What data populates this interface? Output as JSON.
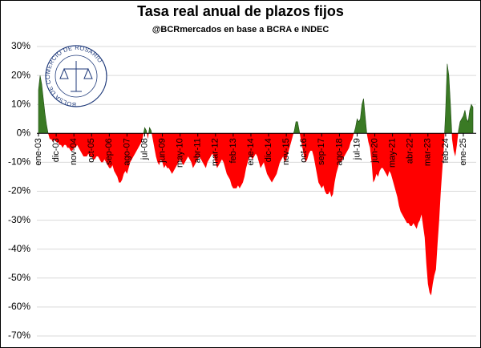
{
  "chart_data": {
    "type": "area",
    "title": "Tasa real anual de plazos fijos",
    "subtitle": "@BCRmercados en base a BCRA e INDEC",
    "logo_text": "BOLSA DE COMERCIO DE ROSARIO",
    "positive_color": "#3a7a24",
    "negative_color": "#ff0000",
    "grid": true,
    "ylim": [
      -70,
      30
    ],
    "yticks": [
      {
        "value": 30,
        "label": "30%"
      },
      {
        "value": 20,
        "label": "20%"
      },
      {
        "value": 10,
        "label": "10%"
      },
      {
        "value": 0,
        "label": "0%"
      },
      {
        "value": -10,
        "label": "-10%"
      },
      {
        "value": -20,
        "label": "-20%"
      },
      {
        "value": -30,
        "label": "-30%"
      },
      {
        "value": -40,
        "label": "-40%"
      },
      {
        "value": -50,
        "label": "-50%"
      },
      {
        "value": -60,
        "label": "-60%"
      },
      {
        "value": -70,
        "label": "-70%"
      }
    ],
    "categories": [
      "ene-03",
      null,
      null,
      null,
      null,
      null,
      null,
      null,
      null,
      null,
      null,
      "dic-03",
      null,
      null,
      null,
      null,
      null,
      null,
      null,
      null,
      null,
      null,
      "nov-04",
      null,
      null,
      null,
      null,
      null,
      null,
      null,
      null,
      null,
      null,
      "oct-05",
      null,
      null,
      null,
      null,
      null,
      null,
      null,
      null,
      null,
      null,
      "sep-06",
      null,
      null,
      null,
      null,
      null,
      null,
      null,
      null,
      null,
      null,
      "ago-07",
      null,
      null,
      null,
      null,
      null,
      null,
      null,
      null,
      null,
      null,
      "jul-08",
      null,
      null,
      null,
      null,
      null,
      null,
      null,
      null,
      null,
      null,
      "jun-09",
      null,
      null,
      null,
      null,
      null,
      null,
      null,
      null,
      null,
      null,
      "may-10",
      null,
      null,
      null,
      null,
      null,
      null,
      null,
      null,
      null,
      null,
      "abr-11",
      null,
      null,
      null,
      null,
      null,
      null,
      null,
      null,
      null,
      null,
      "mar-12",
      null,
      null,
      null,
      null,
      null,
      null,
      null,
      null,
      null,
      null,
      "feb-13",
      null,
      null,
      null,
      null,
      null,
      null,
      null,
      null,
      null,
      null,
      "ene-14",
      null,
      null,
      null,
      null,
      null,
      null,
      null,
      null,
      null,
      null,
      "dic-14",
      null,
      null,
      null,
      null,
      null,
      null,
      null,
      null,
      null,
      null,
      "nov-15",
      null,
      null,
      null,
      null,
      null,
      null,
      null,
      null,
      null,
      null,
      "oct-16",
      null,
      null,
      null,
      null,
      null,
      null,
      null,
      null,
      null,
      null,
      "sep-17",
      null,
      null,
      null,
      null,
      null,
      null,
      null,
      null,
      null,
      null,
      "ago-18",
      null,
      null,
      null,
      null,
      null,
      null,
      null,
      null,
      null,
      null,
      "jul-19",
      null,
      null,
      null,
      null,
      null,
      null,
      null,
      null,
      null,
      null,
      "jun-20",
      null,
      null,
      null,
      null,
      null,
      null,
      null,
      null,
      null,
      null,
      "may-21",
      null,
      null,
      null,
      null,
      null,
      null,
      null,
      null,
      null,
      null,
      "abr-22",
      null,
      null,
      null,
      null,
      null,
      null,
      null,
      null,
      null,
      null,
      "mar-23",
      null,
      null,
      null,
      null,
      null,
      null,
      null,
      null,
      null,
      null,
      "feb-24",
      null,
      null,
      null,
      null,
      null,
      null,
      null,
      null,
      null,
      null,
      "ene-25",
      null,
      null,
      null,
      null,
      null,
      null
    ],
    "values": [
      15,
      20,
      17,
      12,
      7,
      3,
      0,
      -2,
      -2,
      -3,
      -2,
      -3,
      -3,
      -4,
      -4,
      -5,
      -4,
      -4,
      -5,
      -5,
      -6,
      -6,
      -5,
      -5,
      -4,
      -5,
      -6,
      -7,
      -8,
      -8,
      -8,
      -7,
      -8,
      -8,
      -9,
      -9,
      -8,
      -8,
      -9,
      -10,
      -10,
      -9,
      -10,
      -11,
      -12,
      -12,
      -11,
      -13,
      -14,
      -15,
      -17,
      -17,
      -16,
      -14,
      -13,
      -14,
      -12,
      -10,
      -9,
      -8,
      -7,
      -6,
      -5,
      -4,
      -3,
      -1,
      2,
      1,
      -2,
      2,
      1,
      -2,
      -5,
      -8,
      -10,
      -11,
      -9,
      -10,
      -12,
      -11,
      -12,
      -12,
      -13,
      -14,
      -13,
      -12,
      -11,
      -10,
      -9,
      -10,
      -11,
      -10,
      -9,
      -8,
      -9,
      -10,
      -12,
      -11,
      -10,
      -9,
      -8,
      -9,
      -10,
      -11,
      -12,
      -10,
      -9,
      -8,
      -7,
      -8,
      -10,
      -12,
      -11,
      -10,
      -9,
      -10,
      -12,
      -14,
      -15,
      -16,
      -18,
      -19,
      -19,
      -19,
      -18,
      -19,
      -18,
      -17,
      -15,
      -12,
      -10,
      -8,
      -8,
      -9,
      -8,
      -7,
      -8,
      -10,
      -12,
      -11,
      -10,
      -12,
      -14,
      -15,
      -16,
      -17,
      -16,
      -15,
      -14,
      -12,
      -10,
      -9,
      -8,
      -10,
      -9,
      -7,
      -5,
      -3,
      -1,
      1,
      4,
      4,
      1,
      -2,
      -5,
      -8,
      -10,
      -9,
      -7,
      -6,
      -6,
      -8,
      -11,
      -14,
      -17,
      -18,
      -19,
      -18,
      -20,
      -21,
      -21,
      -20,
      -22,
      -21,
      -17,
      -14,
      -12,
      -10,
      -10,
      -9,
      -8,
      -7,
      -6,
      -5,
      -3,
      -2,
      0,
      2,
      5,
      4,
      5,
      10,
      12,
      6,
      0,
      -3,
      -5,
      -10,
      -17,
      -16,
      -14,
      -15,
      -13,
      -12,
      -12,
      -13,
      -14,
      -15,
      -13,
      -14,
      -16,
      -18,
      -20,
      -22,
      -25,
      -27,
      -28,
      -29,
      -30,
      -31,
      -31,
      -32,
      -32,
      -31,
      -32,
      -33,
      -31,
      -30,
      -28,
      -32,
      -36,
      -45,
      -52,
      -55,
      -56,
      -52,
      -49,
      -47,
      -38,
      -30,
      -20,
      -12,
      -4,
      8,
      24,
      20,
      10,
      -2,
      -6,
      -8,
      -4,
      1,
      4,
      5,
      6,
      8,
      5,
      4,
      8,
      10,
      9
    ]
  }
}
